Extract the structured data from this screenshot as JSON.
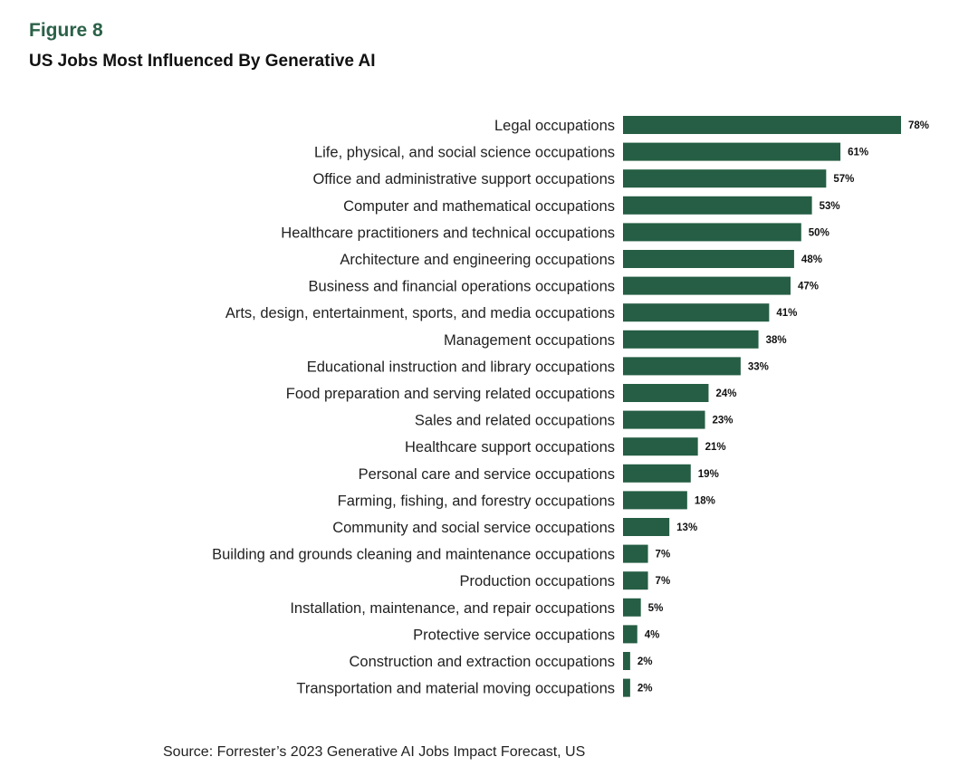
{
  "figure_label": "Figure 8",
  "title": "US Jobs Most Influenced By Generative AI",
  "source": "Source: Forrester’s 2023 Generative AI Jobs Impact Forecast, US",
  "colors": {
    "bar": "#255e44",
    "label_text": "#222222",
    "value_text": "#111111",
    "accent": "#2b6148"
  },
  "chart_data": {
    "type": "bar",
    "orientation": "horizontal",
    "title": "US Jobs Most Influenced By Generative AI",
    "xlabel": "",
    "ylabel": "",
    "value_suffix": "%",
    "xlim": [
      0,
      78
    ],
    "grid": false,
    "categories": [
      "Legal occupations",
      "Life, physical, and social science occupations",
      "Office and administrative support occupations",
      "Computer and mathematical occupations",
      "Healthcare practitioners and technical occupations",
      "Architecture and engineering occupations",
      "Business and financial operations occupations",
      "Arts, design, entertainment, sports, and media occupations",
      "Management occupations",
      "Educational instruction and library occupations",
      "Food preparation and serving related occupations",
      "Sales and related occupations",
      "Healthcare support occupations",
      "Personal care and service occupations",
      "Farming, fishing, and forestry occupations",
      "Community and social service occupations",
      "Building and grounds cleaning and maintenance occupations",
      "Production occupations",
      "Installation, maintenance, and repair occupations",
      "Protective service occupations",
      "Construction and extraction occupations",
      "Transportation and material moving occupations"
    ],
    "values": [
      78,
      61,
      57,
      53,
      50,
      48,
      47,
      41,
      38,
      33,
      24,
      23,
      21,
      19,
      18,
      13,
      7,
      7,
      5,
      4,
      2,
      2
    ],
    "data_labels": [
      "78%",
      "61%",
      "57%",
      "53%",
      "50%",
      "48%",
      "47%",
      "41%",
      "38%",
      "33%",
      "24%",
      "23%",
      "21%",
      "19%",
      "18%",
      "13%",
      "7%",
      "7%",
      "5%",
      "4%",
      "2%",
      "2%"
    ]
  }
}
